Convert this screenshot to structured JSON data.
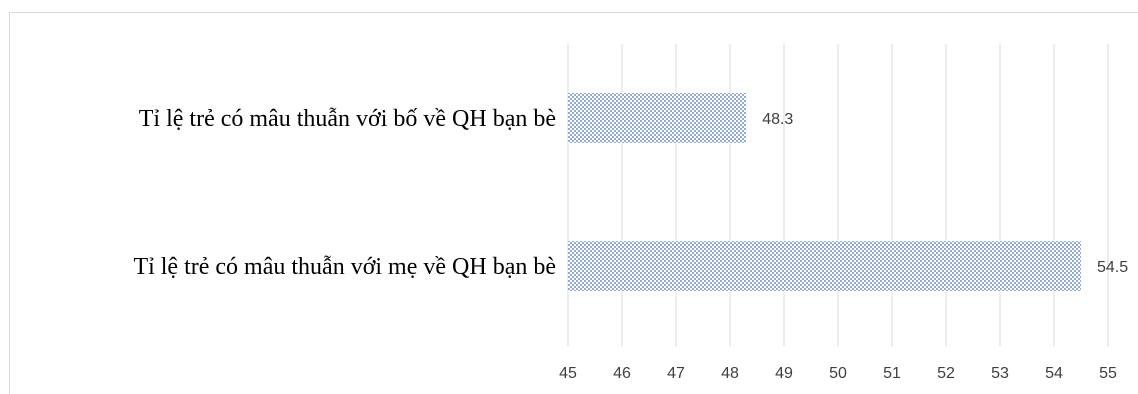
{
  "chart_data": {
    "type": "bar",
    "orientation": "horizontal",
    "title": "",
    "xlabel": "",
    "ylabel": "",
    "categories": [
      "Tỉ lệ trẻ có mâu thuẫn với bố về QH bạn bè",
      "Tỉ lệ trẻ có mâu thuẫn với mẹ về QH bạn bè"
    ],
    "values": [
      48.3,
      54.5
    ],
    "xlim": [
      45,
      55
    ],
    "xticks": [
      "45",
      "46",
      "47",
      "48",
      "49",
      "50",
      "51",
      "52",
      "53",
      "54",
      "55"
    ],
    "data_labels": [
      "48.3",
      "54.5"
    ],
    "grid": true,
    "legend": "none",
    "bar_pattern": "dotted",
    "colors": {
      "bar_dots": "#4472c4",
      "bar_fill": "#ffffff",
      "grid": "#d9d9d9",
      "tick_text": "#404040"
    }
  }
}
